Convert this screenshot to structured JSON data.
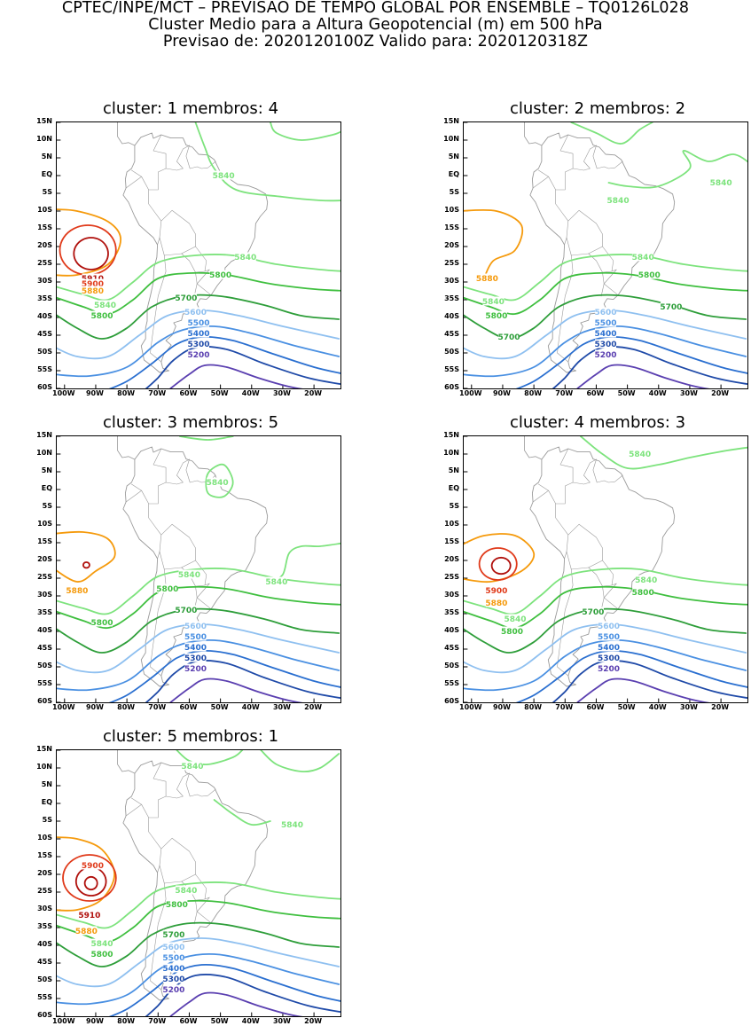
{
  "header": {
    "line1": "CPTEC/INPE/MCT – PREVISAO DE TEMPO GLOBAL POR ENSEMBLE – TQ0126L028",
    "line2": "Cluster Medio para a Altura Geopotencial (m) em 500 hPa",
    "line3": "Previsao de: 2020120100Z    Valido para: 2020120318Z"
  },
  "axes": {
    "lat_labels": [
      "15N",
      "10N",
      "5N",
      "EQ",
      "5S",
      "10S",
      "15S",
      "20S",
      "25S",
      "30S",
      "35S",
      "40S",
      "45S",
      "50S",
      "55S",
      "60S"
    ],
    "lon_labels": [
      "100W",
      "90W",
      "80W",
      "70W",
      "60W",
      "50W",
      "40W",
      "30W",
      "20W"
    ]
  },
  "colors": {
    "h5200": "#5a3fb0",
    "h5300": "#1f4aa8",
    "h5400": "#2a6fd0",
    "h5500": "#4a90e2",
    "h5600": "#8fc0f0",
    "h5700": "#2e9e3a",
    "h5800": "#3fbf3f",
    "h5840": "#7de37d",
    "h5880": "#f59a0c",
    "h5900": "#e03a1a",
    "h5910": "#b0100c",
    "coast": "#9a9a9a"
  },
  "panels": [
    {
      "title": "cluster: 1   membros: 4",
      "labels": [
        {
          "text": "5840",
          "c": "h5840",
          "lon": -49,
          "lat": 0
        },
        {
          "text": "5840",
          "c": "h5840",
          "lon": -42,
          "lat": -23
        },
        {
          "text": "5800",
          "c": "h5800",
          "lon": -50,
          "lat": -28
        },
        {
          "text": "5910",
          "c": "h5910",
          "lon": -91,
          "lat": -29
        },
        {
          "text": "5900",
          "c": "h5900",
          "lon": -91,
          "lat": -30.5
        },
        {
          "text": "5880",
          "c": "h5880",
          "lon": -91,
          "lat": -32.5
        },
        {
          "text": "5840",
          "c": "h5840",
          "lon": -87,
          "lat": -36.5
        },
        {
          "text": "5800",
          "c": "h5800",
          "lon": -88,
          "lat": -39.5
        },
        {
          "text": "5700",
          "c": "h5700",
          "lon": -61,
          "lat": -34.5
        },
        {
          "text": "5600",
          "c": "h5600",
          "lon": -58,
          "lat": -38.5
        },
        {
          "text": "5500",
          "c": "h5500",
          "lon": -57,
          "lat": -41.5
        },
        {
          "text": "5400",
          "c": "h5400",
          "lon": -57,
          "lat": -44.5
        },
        {
          "text": "5300",
          "c": "h5300",
          "lon": -57,
          "lat": -47.5
        },
        {
          "text": "5200",
          "c": "h5200",
          "lon": -57,
          "lat": -50.5
        }
      ]
    },
    {
      "title": "cluster: 2   membros: 2",
      "labels": [
        {
          "text": "5840",
          "c": "h5840",
          "lon": -53,
          "lat": -7
        },
        {
          "text": "5840",
          "c": "h5840",
          "lon": -20,
          "lat": -2
        },
        {
          "text": "5840",
          "c": "h5840",
          "lon": -45,
          "lat": -23
        },
        {
          "text": "5800",
          "c": "h5800",
          "lon": -43,
          "lat": -28
        },
        {
          "text": "5880",
          "c": "h5880",
          "lon": -95,
          "lat": -29
        },
        {
          "text": "5840",
          "c": "h5840",
          "lon": -93,
          "lat": -35.5
        },
        {
          "text": "5800",
          "c": "h5800",
          "lon": -92,
          "lat": -39.5
        },
        {
          "text": "5700",
          "c": "h5700",
          "lon": -36,
          "lat": -37
        },
        {
          "text": "5700",
          "c": "h5700",
          "lon": -88,
          "lat": -45.5
        },
        {
          "text": "5600",
          "c": "h5600",
          "lon": -57,
          "lat": -38.5
        },
        {
          "text": "5500",
          "c": "h5500",
          "lon": -57,
          "lat": -41.5
        },
        {
          "text": "5400",
          "c": "h5400",
          "lon": -57,
          "lat": -44.5
        },
        {
          "text": "5300",
          "c": "h5300",
          "lon": -57,
          "lat": -47.5
        },
        {
          "text": "5200",
          "c": "h5200",
          "lon": -57,
          "lat": -50.5
        }
      ]
    },
    {
      "title": "cluster: 3   membros: 5",
      "labels": [
        {
          "text": "5840",
          "c": "h5840",
          "lon": -51,
          "lat": 2
        },
        {
          "text": "5840",
          "c": "h5840",
          "lon": -60,
          "lat": -24
        },
        {
          "text": "5840",
          "c": "h5840",
          "lon": -32,
          "lat": -26
        },
        {
          "text": "5800",
          "c": "h5800",
          "lon": -67,
          "lat": -28
        },
        {
          "text": "5880",
          "c": "h5880",
          "lon": -96,
          "lat": -28.5
        },
        {
          "text": "5800",
          "c": "h5800",
          "lon": -88,
          "lat": -37.5
        },
        {
          "text": "5700",
          "c": "h5700",
          "lon": -61,
          "lat": -34
        },
        {
          "text": "5600",
          "c": "h5600",
          "lon": -58,
          "lat": -38.5
        },
        {
          "text": "5500",
          "c": "h5500",
          "lon": -58,
          "lat": -41.5
        },
        {
          "text": "5400",
          "c": "h5400",
          "lon": -58,
          "lat": -44.5
        },
        {
          "text": "5300",
          "c": "h5300",
          "lon": -58,
          "lat": -47.5
        },
        {
          "text": "5200",
          "c": "h5200",
          "lon": -58,
          "lat": -50.5
        }
      ]
    },
    {
      "title": "cluster: 4   membros: 3",
      "labels": [
        {
          "text": "5840",
          "c": "h5840",
          "lon": -46,
          "lat": 10
        },
        {
          "text": "5840",
          "c": "h5840",
          "lon": -44,
          "lat": -25.5
        },
        {
          "text": "5800",
          "c": "h5800",
          "lon": -45,
          "lat": -29
        },
        {
          "text": "5900",
          "c": "h5900",
          "lon": -92,
          "lat": -28.5
        },
        {
          "text": "5880",
          "c": "h5880",
          "lon": -92,
          "lat": -32
        },
        {
          "text": "5840",
          "c": "h5840",
          "lon": -86,
          "lat": -36.5
        },
        {
          "text": "5800",
          "c": "h5800",
          "lon": -87,
          "lat": -40
        },
        {
          "text": "5700",
          "c": "h5700",
          "lon": -61,
          "lat": -34.5
        },
        {
          "text": "5600",
          "c": "h5600",
          "lon": -56,
          "lat": -38.5
        },
        {
          "text": "5500",
          "c": "h5500",
          "lon": -56,
          "lat": -41.5
        },
        {
          "text": "5400",
          "c": "h5400",
          "lon": -56,
          "lat": -44.5
        },
        {
          "text": "5300",
          "c": "h5300",
          "lon": -56,
          "lat": -47.5
        },
        {
          "text": "5200",
          "c": "h5200",
          "lon": -56,
          "lat": -50.5
        }
      ]
    },
    {
      "title": "cluster: 5   membros: 1",
      "labels": [
        {
          "text": "5840",
          "c": "h5840",
          "lon": -59,
          "lat": 10.5
        },
        {
          "text": "5840",
          "c": "h5840",
          "lon": -27,
          "lat": -6
        },
        {
          "text": "5900",
          "c": "h5900",
          "lon": -91,
          "lat": -17.5
        },
        {
          "text": "5840",
          "c": "h5840",
          "lon": -61,
          "lat": -24.5
        },
        {
          "text": "5800",
          "c": "h5800",
          "lon": -64,
          "lat": -28.5
        },
        {
          "text": "5910",
          "c": "h5910",
          "lon": -92,
          "lat": -31.5
        },
        {
          "text": "5880",
          "c": "h5880",
          "lon": -93,
          "lat": -36
        },
        {
          "text": "5840",
          "c": "h5840",
          "lon": -88,
          "lat": -39.5
        },
        {
          "text": "5800",
          "c": "h5800",
          "lon": -88,
          "lat": -42.5
        },
        {
          "text": "5700",
          "c": "h5700",
          "lon": -65,
          "lat": -37
        },
        {
          "text": "5600",
          "c": "h5600",
          "lon": -65,
          "lat": -40.5
        },
        {
          "text": "5500",
          "c": "h5500",
          "lon": -65,
          "lat": -43.5
        },
        {
          "text": "5400",
          "c": "h5400",
          "lon": -65,
          "lat": -46.5
        },
        {
          "text": "5300",
          "c": "h5300",
          "lon": -65,
          "lat": -49.5
        },
        {
          "text": "5200",
          "c": "h5200",
          "lon": -65,
          "lat": -52.5
        }
      ]
    }
  ]
}
